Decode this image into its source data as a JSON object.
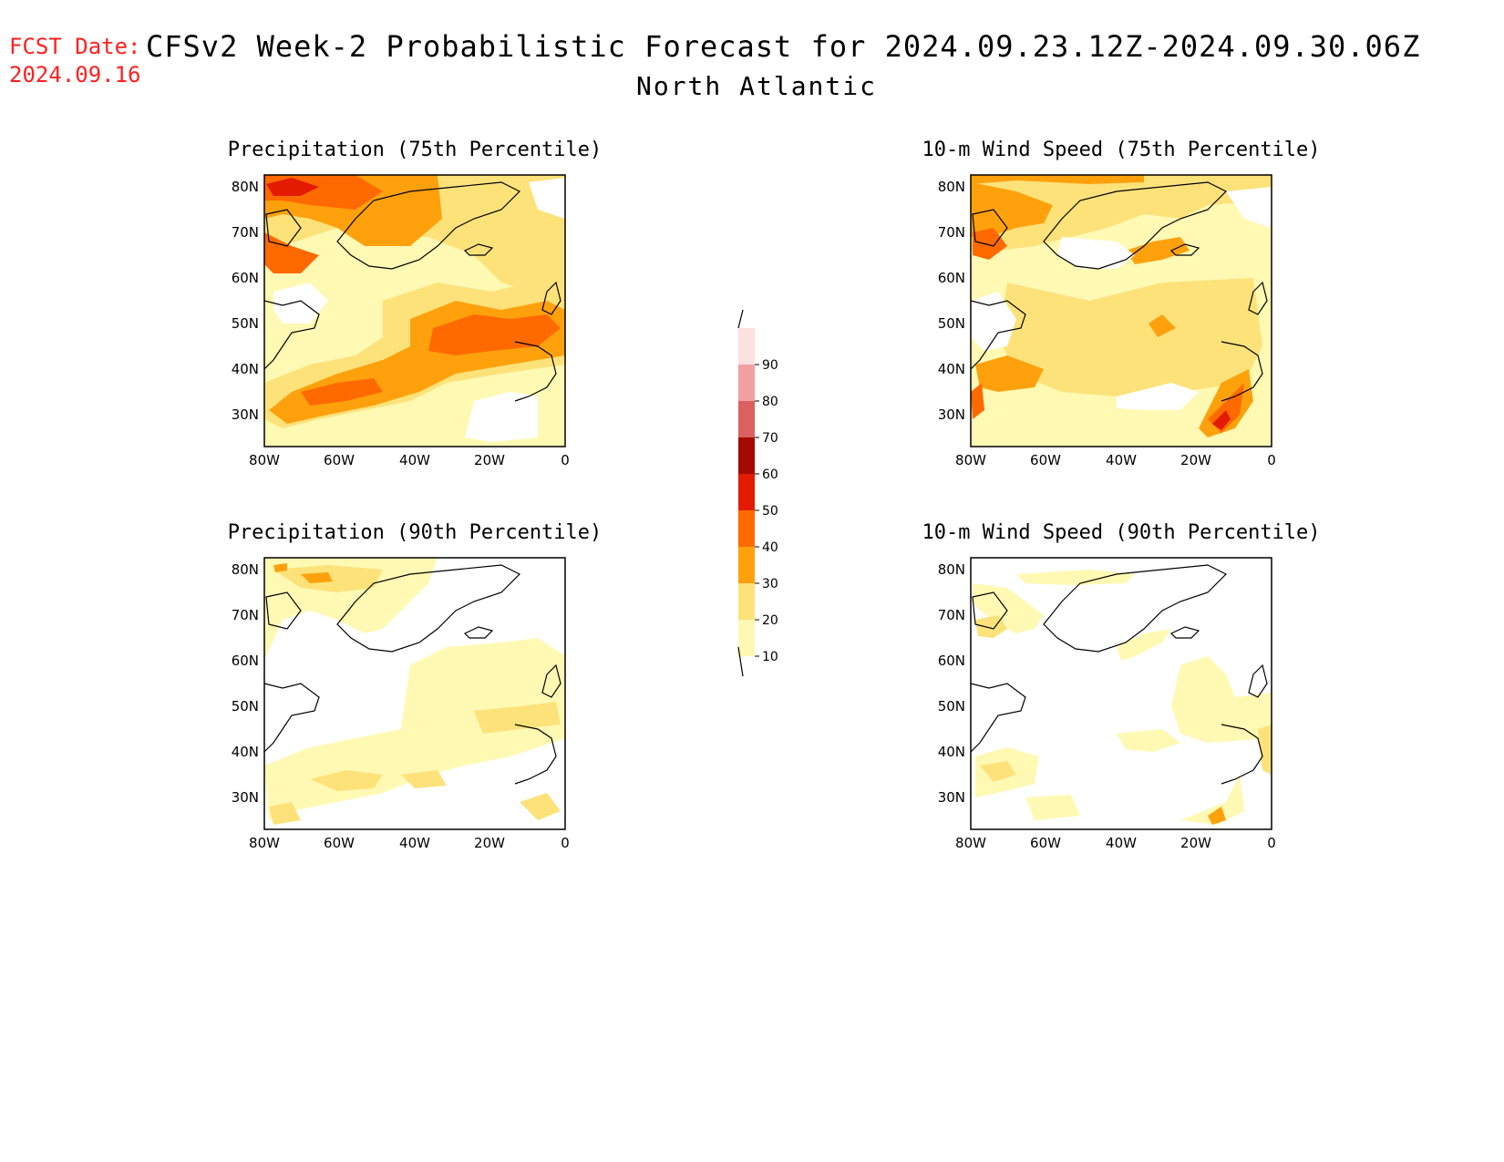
{
  "header": {
    "fcst_label": "FCST Date:",
    "fcst_date": "2024.09.16",
    "title": "CFSv2 Week-2 Probabilistic Forecast for 2024.09.23.12Z-2024.09.30.06Z",
    "subtitle": "North Atlantic"
  },
  "axes": {
    "lat_labels": [
      "80N",
      "70N",
      "60N",
      "50N",
      "40N",
      "30N"
    ],
    "lon_labels": [
      "80W",
      "60W",
      "40W",
      "20W",
      "0"
    ]
  },
  "panels": [
    {
      "id": "precip75",
      "title": "Precipitation (75th Percentile)"
    },
    {
      "id": "wind75",
      "title": "10-m Wind Speed (75th Percentile)"
    },
    {
      "id": "precip90",
      "title": "Precipitation (90th Percentile)"
    },
    {
      "id": "wind90",
      "title": "10-m Wind Speed (90th Percentile)"
    }
  ],
  "colorbar": {
    "levels": [
      "10",
      "20",
      "30",
      "40",
      "50",
      "60",
      "70",
      "80",
      "90"
    ],
    "colors": [
      "#fff9b3",
      "#fde27a",
      "#ffa10c",
      "#ff6a00",
      "#e31b00",
      "#a50a00",
      "#dc6060",
      "#f2a0a0",
      "#fde0e0"
    ]
  }
}
